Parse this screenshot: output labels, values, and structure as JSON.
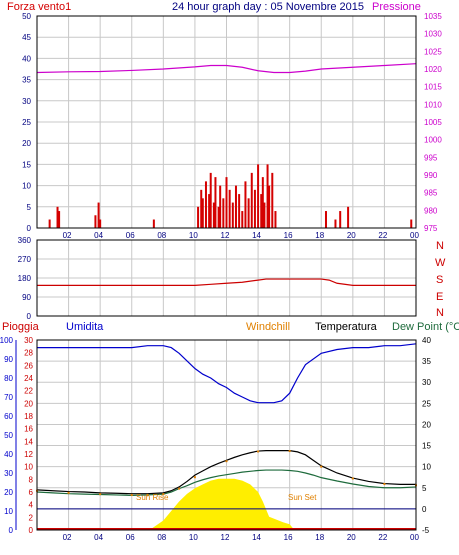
{
  "header": {
    "title": "24 hour graph day : 05 Novembre 2015",
    "left_label": "Forza vento1",
    "right_label": "Pressione"
  },
  "wind_dir_labels": [
    "N",
    "W",
    "S",
    "E",
    "N"
  ],
  "bottom_legend": {
    "pioggia": "Pioggia",
    "umidita": "Umidita",
    "windchill": "Windchill",
    "temperatura": "Temperatura",
    "dewpoint": "Dew Point (°C"
  },
  "annotations": {
    "sunrise": "Sun Rise",
    "sunset": "Sun Set"
  },
  "colors": {
    "wind": "#d40000",
    "wind_dir_line": "#cc0000",
    "pressure": "#cc00cc",
    "humidity": "#0000cc",
    "temperature": "#000000",
    "dewpoint": "#1e6b3c",
    "windchill": "#e08000",
    "solar": "#ffee00",
    "rain_axis": "#cc0000",
    "title": "#000080",
    "grid": "#c8c8c8"
  },
  "chart_data": [
    {
      "type": "bar",
      "title": "24 hour graph day : 05 Novembre 2015",
      "x_ticks": [
        "02",
        "04",
        "06",
        "08",
        "10",
        "12",
        "14",
        "16",
        "18",
        "20",
        "22",
        "00"
      ],
      "y_left": {
        "label": "Forza vento1",
        "ticks": [
          0,
          5,
          10,
          15,
          20,
          25,
          30,
          35,
          40,
          45,
          50
        ],
        "lim": [
          0,
          50
        ]
      },
      "y_right": {
        "label": "Pressione",
        "ticks": [
          975,
          980,
          985,
          990,
          995,
          1000,
          1005,
          1010,
          1015,
          1020,
          1025,
          1030,
          1035
        ],
        "lim": [
          975,
          1035
        ]
      },
      "series": [
        {
          "name": "Forza vento1",
          "type": "bar",
          "x": [
            0.8,
            1.3,
            1.4,
            3.7,
            3.9,
            4.0,
            7.4,
            10.2,
            10.4,
            10.5,
            10.7,
            10.9,
            11.0,
            11.2,
            11.3,
            11.5,
            11.6,
            11.8,
            12.0,
            12.2,
            12.4,
            12.6,
            12.8,
            13.0,
            13.2,
            13.4,
            13.6,
            13.8,
            14.0,
            14.2,
            14.3,
            14.4,
            14.6,
            14.7,
            14.9,
            15.1,
            18.3,
            18.9,
            19.2,
            19.7,
            23.7
          ],
          "y": [
            2,
            5,
            4,
            3,
            6,
            2,
            2,
            5,
            9,
            7,
            11,
            8,
            13,
            6,
            12,
            5,
            10,
            7,
            12,
            9,
            6,
            10,
            8,
            4,
            11,
            7,
            13,
            9,
            15,
            8,
            12,
            6,
            15,
            10,
            13,
            4,
            4,
            2,
            4,
            5,
            2
          ]
        },
        {
          "name": "Pressione",
          "type": "line",
          "x": [
            0,
            2,
            4,
            6,
            8,
            10,
            11,
            12,
            13,
            14,
            15,
            16,
            17,
            18,
            20,
            22,
            24
          ],
          "y": [
            1019,
            1019.2,
            1019.3,
            1019.6,
            1020,
            1020.6,
            1021,
            1021,
            1020.5,
            1019.5,
            1019,
            1019,
            1019.4,
            1020,
            1020.5,
            1021,
            1021.5
          ]
        }
      ]
    },
    {
      "type": "line",
      "title": "",
      "x_ticks": [
        "02",
        "04",
        "06",
        "08",
        "10",
        "12",
        "14",
        "16",
        "18",
        "20",
        "22",
        "00"
      ],
      "y_left": {
        "ticks": [
          0,
          90,
          180,
          270,
          360
        ],
        "lim": [
          0,
          360
        ]
      },
      "series": [
        {
          "name": "",
          "x": [
            0,
            10,
            11,
            12,
            13,
            14,
            14.5,
            15,
            16,
            17,
            18,
            18.5,
            19,
            20,
            24
          ],
          "y": [
            145,
            145,
            150,
            155,
            160,
            170,
            175,
            175,
            175,
            175,
            175,
            170,
            155,
            145,
            145
          ]
        }
      ]
    },
    {
      "type": "line",
      "title": "",
      "x_ticks": [
        "02",
        "04",
        "06",
        "08",
        "10",
        "12",
        "14",
        "16",
        "18",
        "20",
        "22",
        "00"
      ],
      "y_left": {
        "label": "Umidita",
        "ticks": [
          0,
          10,
          20,
          30,
          40,
          50,
          60,
          70,
          80,
          90,
          100
        ],
        "lim": [
          0,
          100
        ]
      },
      "y_left2": {
        "label": "Pioggia",
        "ticks": [
          0,
          2,
          4,
          6,
          8,
          10,
          12,
          14,
          16,
          18,
          20,
          22,
          24,
          26,
          28,
          30
        ],
        "lim": [
          0,
          30
        ]
      },
      "y_right": {
        "label": "Dew Point (°C",
        "ticks": [
          -5,
          0,
          5,
          10,
          15,
          20,
          25,
          30,
          35,
          40
        ],
        "lim": [
          -5,
          40
        ]
      },
      "series": [
        {
          "name": "Umidita",
          "axis": "left",
          "x": [
            0,
            1,
            2,
            3,
            4,
            5,
            6,
            7,
            8,
            8.5,
            9,
            9.5,
            10,
            10.5,
            11,
            11.5,
            12,
            12.5,
            13,
            13.5,
            14,
            14.5,
            15,
            15.5,
            16,
            16.5,
            17,
            18,
            19,
            20,
            21,
            22,
            23,
            24
          ],
          "y": [
            96,
            96,
            96,
            96,
            96,
            96,
            96,
            97,
            97,
            96,
            93,
            89,
            85,
            82,
            80,
            77,
            75,
            72,
            70,
            68,
            67,
            67,
            67,
            68,
            72,
            80,
            87,
            93,
            95,
            96,
            96,
            97,
            97,
            98
          ]
        },
        {
          "name": "Temperatura",
          "axis": "right",
          "x": [
            0,
            1,
            2,
            3,
            4,
            5,
            6,
            7,
            8,
            8.5,
            9,
            9.5,
            10,
            10.5,
            11,
            11.5,
            12,
            12.5,
            13,
            13.5,
            14,
            14.5,
            15,
            15.5,
            16,
            16.5,
            17,
            17.5,
            18,
            19,
            20,
            21,
            22,
            23,
            24
          ],
          "y": [
            4.5,
            4.3,
            4.1,
            4.0,
            3.8,
            3.7,
            3.6,
            3.6,
            3.8,
            4.3,
            5.2,
            6.5,
            8.0,
            9.0,
            10.0,
            10.8,
            11.5,
            12.2,
            12.8,
            13.3,
            13.7,
            13.8,
            13.8,
            13.8,
            13.8,
            13.5,
            12.8,
            11.5,
            10.2,
            8.5,
            7.3,
            6.5,
            6.0,
            5.8,
            5.8
          ]
        },
        {
          "name": "Dew Point (°C",
          "axis": "right",
          "x": [
            0,
            1,
            2,
            3,
            4,
            5,
            6,
            7,
            8,
            8.5,
            9,
            9.5,
            10,
            10.5,
            11,
            11.5,
            12,
            12.5,
            13,
            13.5,
            14,
            14.5,
            15,
            15.5,
            16,
            16.5,
            17,
            17.5,
            18,
            19,
            20,
            21,
            22,
            23,
            24
          ],
          "y": [
            4.0,
            3.8,
            3.6,
            3.5,
            3.4,
            3.3,
            3.2,
            3.3,
            3.5,
            4.0,
            4.8,
            5.5,
            6.3,
            6.9,
            7.4,
            7.8,
            8.1,
            8.4,
            8.7,
            8.9,
            9.1,
            9.2,
            9.2,
            9.2,
            9.1,
            8.9,
            8.5,
            8.0,
            7.4,
            6.6,
            5.9,
            5.3,
            5.0,
            5.0,
            5.2
          ]
        },
        {
          "name": "Windchill",
          "axis": "right",
          "x": [
            0,
            2,
            4,
            6,
            7,
            8,
            9,
            10,
            12,
            14,
            16,
            18,
            20,
            22,
            24
          ],
          "y": [
            4.3,
            3.8,
            3.5,
            3.3,
            3.3,
            3.5,
            4.8,
            7.5,
            11.3,
            13.6,
            13.7,
            10.0,
            7.2,
            5.9,
            5.6
          ]
        },
        {
          "name": "Solar",
          "axis": "left",
          "type": "area",
          "x": [
            0,
            6.8,
            7.3,
            8,
            8.5,
            9,
            9.5,
            10,
            10.5,
            11,
            11.5,
            12,
            12.5,
            13,
            13.5,
            14,
            14.3,
            14.5,
            14.7,
            15,
            15.3,
            15.6,
            16,
            16.2,
            16.5,
            17,
            24
          ],
          "y": [
            0,
            0,
            1,
            5,
            10,
            15,
            19,
            22,
            24,
            26,
            27,
            27,
            27,
            26,
            24,
            20,
            15,
            11,
            7,
            6,
            5,
            4,
            3,
            1,
            0,
            0,
            0
          ]
        },
        {
          "name": "Pioggia",
          "axis": "left2",
          "type": "bar",
          "x": [],
          "y": []
        }
      ]
    }
  ]
}
